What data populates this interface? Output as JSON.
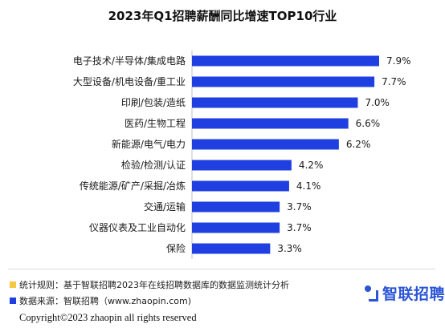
{
  "colors": {
    "bar": "#1f3fe0",
    "rule_square": "#f5c842",
    "source_square": "#1f3fe0",
    "brand": "#2b54d6"
  },
  "chart_data": {
    "type": "bar",
    "orientation": "horizontal",
    "title": "2023年Q1招聘薪酬同比增速TOP10行业",
    "categories": [
      "电子技术/半导体/集成电路",
      "大型设备/机电设备/重工业",
      "印刷/包装/造纸",
      "医药/生物工程",
      "新能源/电气/电力",
      "检验/检测/认证",
      "传统能源/矿产/采掘/冶炼",
      "交通/运输",
      "仪器仪表及工业自动化",
      "保险"
    ],
    "values": [
      7.9,
      7.7,
      7.0,
      6.6,
      6.2,
      4.2,
      4.1,
      3.7,
      3.7,
      3.3
    ],
    "value_labels": [
      "7.9%",
      "7.7%",
      "7.0%",
      "6.6%",
      "6.2%",
      "4.2%",
      "4.1%",
      "3.7%",
      "3.7%",
      "3.3%"
    ],
    "xlim": [
      0,
      7.9
    ],
    "grid": false,
    "legend": "none"
  },
  "footer": {
    "rule_text": "统计规则：基于智联招聘2023年在线招聘数据库的数据监测统计分析",
    "source_text": "数据来源：智联招聘（www.zhaopin.com)",
    "copyright": "Copyright©2023 zhaopin all rights reserved",
    "brand_name": "智联招聘"
  }
}
